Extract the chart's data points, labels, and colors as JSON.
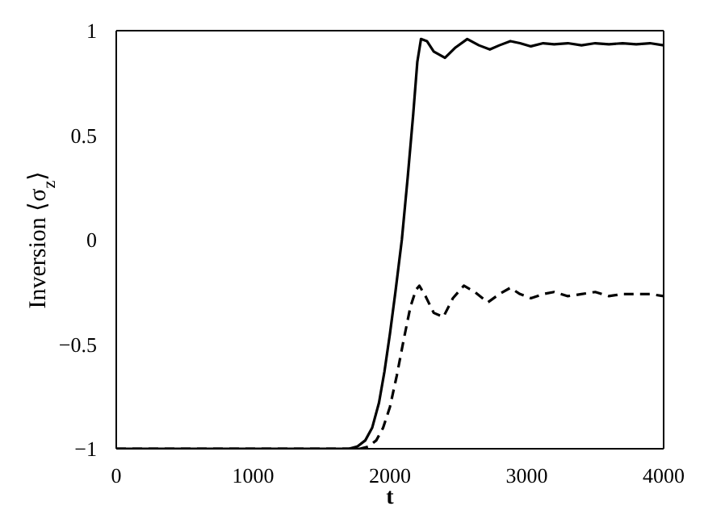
{
  "chart_data": {
    "type": "line",
    "xlabel": "t",
    "ylabel": "Inversion ⟨σ$_{z}$⟩",
    "xlim": [
      0,
      4000
    ],
    "ylim": [
      -1,
      1
    ],
    "xticks": [
      0,
      1000,
      2000,
      3000,
      4000
    ],
    "yticks": [
      -1,
      -0.5,
      0,
      0.5,
      1
    ],
    "grid": false,
    "legend": false,
    "marker": "none",
    "series": [
      {
        "color": "#000000",
        "line_style": "solid",
        "x": [
          0,
          1700,
          1760,
          1820,
          1870,
          1920,
          1960,
          2000,
          2040,
          2087,
          2130,
          2170,
          2200,
          2227,
          2270,
          2320,
          2402,
          2480,
          2565,
          2650,
          2730,
          2800,
          2880,
          2950,
          3030,
          3120,
          3200,
          3300,
          3400,
          3500,
          3600,
          3700,
          3800,
          3900,
          4000
        ],
        "values": [
          -1,
          -1,
          -0.99,
          -0.96,
          -0.9,
          -0.78,
          -0.63,
          -0.45,
          -0.25,
          0,
          0.3,
          0.6,
          0.85,
          0.96,
          0.95,
          0.9,
          0.87,
          0.92,
          0.96,
          0.93,
          0.91,
          0.93,
          0.95,
          0.94,
          0.925,
          0.94,
          0.935,
          0.94,
          0.93,
          0.94,
          0.935,
          0.94,
          0.935,
          0.94,
          0.93
        ]
      },
      {
        "color": "#000000",
        "line_style": "dashed",
        "x": [
          0,
          1780,
          1840,
          1900,
          1950,
          2000,
          2050,
          2100,
          2150,
          2190,
          2215,
          2260,
          2320,
          2390,
          2460,
          2540,
          2620,
          2715,
          2800,
          2880,
          2950,
          3030,
          3120,
          3200,
          3300,
          3400,
          3500,
          3600,
          3700,
          3800,
          3900,
          4000
        ],
        "values": [
          -1,
          -1,
          -0.99,
          -0.96,
          -0.9,
          -0.8,
          -0.65,
          -0.48,
          -0.32,
          -0.24,
          -0.22,
          -0.27,
          -0.35,
          -0.37,
          -0.28,
          -0.22,
          -0.25,
          -0.3,
          -0.26,
          -0.23,
          -0.26,
          -0.28,
          -0.26,
          -0.25,
          -0.27,
          -0.26,
          -0.25,
          -0.27,
          -0.26,
          -0.26,
          -0.26,
          -0.27
        ]
      }
    ]
  }
}
